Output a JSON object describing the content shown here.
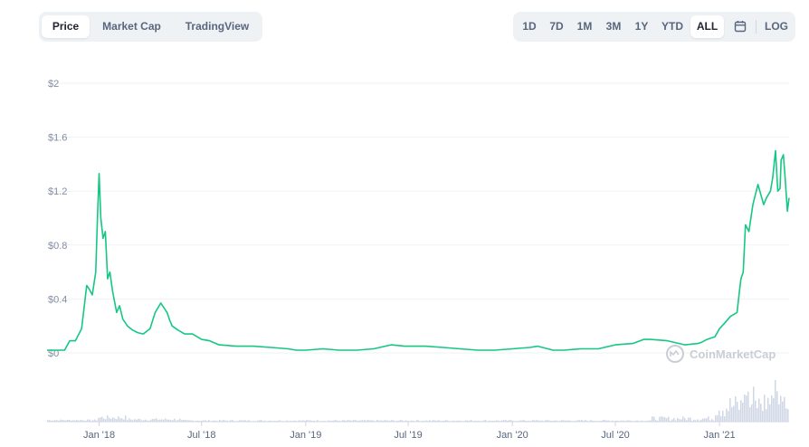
{
  "view_tabs": [
    {
      "label": "Price",
      "active": true
    },
    {
      "label": "Market Cap",
      "active": false
    },
    {
      "label": "TradingView",
      "active": false
    }
  ],
  "range_tabs": [
    {
      "label": "1D",
      "active": false
    },
    {
      "label": "7D",
      "active": false
    },
    {
      "label": "1M",
      "active": false
    },
    {
      "label": "3M",
      "active": false
    },
    {
      "label": "1Y",
      "active": false
    },
    {
      "label": "YTD",
      "active": false
    },
    {
      "label": "ALL",
      "active": true
    }
  ],
  "calendar_icon": "calendar-icon",
  "log_label": "LOG",
  "watermark": "CoinMarketCap",
  "colors": {
    "line": "#16c784",
    "volume": "#cfd6e4",
    "grid": "#eff2f5",
    "active_tab_bg": "#ffffff",
    "tab_bar_bg": "#eff2f5"
  },
  "chart_data": {
    "type": "line",
    "y_tick_labels": [
      "$0",
      "$0.4",
      "$0.8",
      "$1.2",
      "$1.6",
      "$2"
    ],
    "x_tick_labels": [
      "Jan '18",
      "Jul '18",
      "Jan '19",
      "Jul '19",
      "Jan '20",
      "Jul '20",
      "Jan '21"
    ],
    "ylim": [
      0,
      2
    ],
    "xlim": [
      "2017-10-01",
      "2021-05-04"
    ],
    "grid": true,
    "series": [
      {
        "x": [
          "2017-10-01",
          "2017-10-15",
          "2017-11-01",
          "2017-11-10",
          "2017-11-20",
          "2017-12-01",
          "2017-12-10",
          "2017-12-15",
          "2017-12-20",
          "2017-12-26",
          "2017-12-29",
          "2018-01-01",
          "2018-01-04",
          "2018-01-08",
          "2018-01-12",
          "2018-01-16",
          "2018-01-20",
          "2018-01-25",
          "2018-02-01",
          "2018-02-06",
          "2018-02-12",
          "2018-02-20",
          "2018-03-01",
          "2018-03-10",
          "2018-03-20",
          "2018-04-01",
          "2018-04-10",
          "2018-04-20",
          "2018-05-01",
          "2018-05-05",
          "2018-05-10",
          "2018-05-20",
          "2018-06-01",
          "2018-06-15",
          "2018-07-01",
          "2018-07-15",
          "2018-08-01",
          "2018-09-01",
          "2018-10-01",
          "2018-11-01",
          "2018-12-01",
          "2018-12-15",
          "2019-01-01",
          "2019-02-01",
          "2019-03-01",
          "2019-04-01",
          "2019-05-01",
          "2019-06-01",
          "2019-06-25",
          "2019-08-01",
          "2019-09-01",
          "2019-10-01",
          "2019-11-01",
          "2019-12-01",
          "2020-01-01",
          "2020-02-01",
          "2020-02-15",
          "2020-03-13",
          "2020-04-01",
          "2020-05-01",
          "2020-06-01",
          "2020-07-01",
          "2020-08-01",
          "2020-08-20",
          "2020-09-01",
          "2020-10-01",
          "2020-11-01",
          "2020-11-24",
          "2020-12-01",
          "2020-12-10",
          "2020-12-24",
          "2021-01-01",
          "2021-01-10",
          "2021-01-20",
          "2021-02-01",
          "2021-02-05",
          "2021-02-08",
          "2021-02-12",
          "2021-02-16",
          "2021-02-22",
          "2021-03-01",
          "2021-03-10",
          "2021-03-20",
          "2021-03-25",
          "2021-04-01",
          "2021-04-05",
          "2021-04-10",
          "2021-04-14",
          "2021-04-18",
          "2021-04-20",
          "2021-04-24",
          "2021-04-27",
          "2021-05-01",
          "2021-05-04"
        ],
        "values": [
          0.02,
          0.02,
          0.02,
          0.09,
          0.09,
          0.18,
          0.5,
          0.47,
          0.43,
          0.6,
          1.0,
          1.33,
          1.0,
          0.85,
          0.9,
          0.55,
          0.6,
          0.45,
          0.3,
          0.35,
          0.25,
          0.2,
          0.17,
          0.15,
          0.14,
          0.18,
          0.3,
          0.37,
          0.3,
          0.25,
          0.2,
          0.17,
          0.14,
          0.14,
          0.1,
          0.09,
          0.06,
          0.05,
          0.05,
          0.04,
          0.03,
          0.02,
          0.02,
          0.03,
          0.02,
          0.02,
          0.03,
          0.06,
          0.05,
          0.05,
          0.04,
          0.03,
          0.02,
          0.02,
          0.03,
          0.04,
          0.05,
          0.02,
          0.02,
          0.03,
          0.03,
          0.06,
          0.07,
          0.1,
          0.1,
          0.09,
          0.06,
          0.07,
          0.08,
          0.1,
          0.12,
          0.18,
          0.22,
          0.27,
          0.3,
          0.45,
          0.55,
          0.6,
          0.95,
          0.9,
          1.1,
          1.25,
          1.1,
          1.15,
          1.2,
          1.3,
          1.5,
          1.2,
          1.22,
          1.43,
          1.47,
          1.3,
          1.05,
          1.15
        ]
      }
    ]
  }
}
